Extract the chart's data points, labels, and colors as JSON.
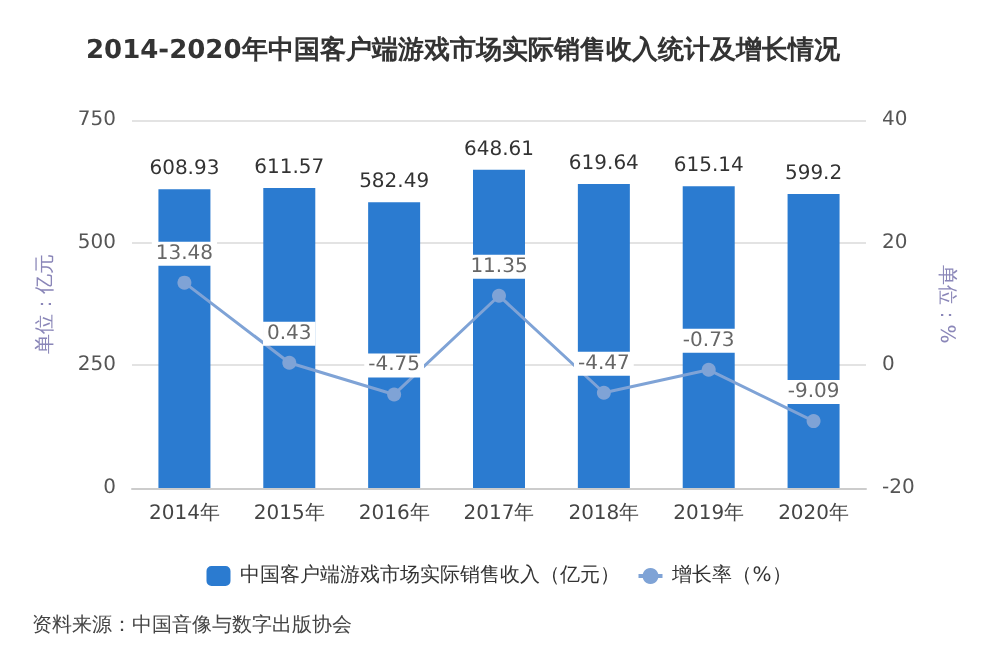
{
  "chart_data": {
    "type": "bar",
    "title": "2014-2020年中国客户端游戏市场实际销售收入统计及增长情况",
    "ylabel": "单位：亿元",
    "y2label": "单位：%",
    "categories": [
      "2014年",
      "2015年",
      "2016年",
      "2017年",
      "2018年",
      "2019年",
      "2020年"
    ],
    "series": [
      {
        "name": "中国客户端游戏市场实际销售收入（亿元）",
        "color": "#2b7bd0",
        "values": [
          608.93,
          611.57,
          582.49,
          648.61,
          619.64,
          615.14,
          599.2
        ]
      },
      {
        "name": "增长率（%）",
        "type": "line",
        "axis": "y2",
        "color": "#7fa3d6",
        "marker": "circle",
        "values": [
          13.48,
          0.43,
          -4.75,
          11.35,
          -4.47,
          -0.73,
          -9.09
        ]
      }
    ],
    "ylim": [
      0,
      750
    ],
    "yticks": [
      0,
      250,
      500,
      750
    ],
    "y2lim": [
      -20,
      40
    ],
    "y2ticks": [
      -20,
      0,
      20,
      40
    ],
    "data_labels": true,
    "grid": "y",
    "legend": "bottom",
    "annotations": [
      "资料来源：中国音像与数字出版协会"
    ]
  }
}
